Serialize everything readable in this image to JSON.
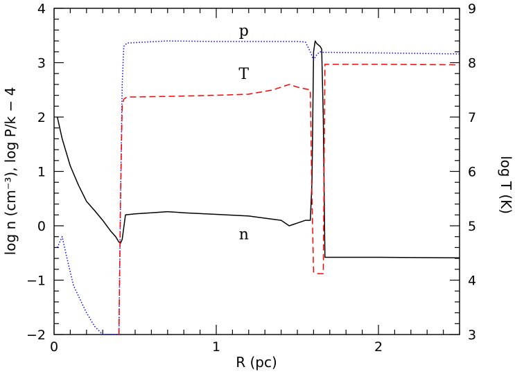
{
  "chart_data": {
    "type": "line",
    "title": "",
    "xlabel": "R (pc)",
    "ylabel_left": "log n (cm⁻³), log P/k − 4",
    "ylabel_right": "log T (K)",
    "xlim": [
      0,
      2.5
    ],
    "ylim_left": [
      -2,
      4
    ],
    "ylim_right": [
      3,
      9
    ],
    "grid": false,
    "x_ticks": [
      0,
      1,
      2
    ],
    "y_ticks_left": [
      -2,
      -1,
      0,
      1,
      2,
      3,
      4
    ],
    "y_ticks_right": [
      3,
      4,
      5,
      6,
      7,
      8,
      9
    ],
    "series": [
      {
        "name": "n",
        "axis": "left",
        "style": "solid",
        "color": "#000000",
        "x": [
          0.02,
          0.05,
          0.1,
          0.15,
          0.2,
          0.25,
          0.3,
          0.35,
          0.38,
          0.4,
          0.41,
          0.42,
          0.44,
          0.5,
          0.6,
          0.7,
          0.8,
          1.0,
          1.2,
          1.4,
          1.45,
          1.5,
          1.55,
          1.58,
          1.59,
          1.6,
          1.61,
          1.62,
          1.64,
          1.65,
          1.66,
          1.67,
          1.7,
          2.0,
          2.5
        ],
        "y": [
          2.0,
          1.6,
          1.1,
          0.75,
          0.45,
          0.28,
          0.1,
          -0.1,
          -0.2,
          -0.3,
          -0.32,
          -0.25,
          0.2,
          0.22,
          0.24,
          0.26,
          0.24,
          0.21,
          0.18,
          0.1,
          0.0,
          0.05,
          0.1,
          0.1,
          0.8,
          3.2,
          3.4,
          3.35,
          3.3,
          3.25,
          2.0,
          -0.58,
          -0.58,
          -0.58,
          -0.59
        ]
      },
      {
        "name": "p",
        "axis": "left",
        "style": "dotted",
        "color": "#0000ff",
        "x": [
          0.02,
          0.05,
          0.08,
          0.12,
          0.16,
          0.2,
          0.25,
          0.3,
          0.32,
          0.4,
          0.41,
          0.42,
          0.43,
          0.45,
          0.5,
          0.7,
          1.0,
          1.3,
          1.5,
          1.55,
          1.58,
          1.6,
          1.62,
          1.64,
          1.66,
          1.7,
          2.0,
          2.5
        ],
        "y": [
          -0.4,
          -0.2,
          -0.6,
          -1.1,
          -1.35,
          -1.6,
          -1.85,
          -2.0,
          -2.02,
          -2.0,
          0.5,
          2.6,
          3.3,
          3.36,
          3.37,
          3.4,
          3.39,
          3.39,
          3.39,
          3.38,
          3.2,
          3.05,
          3.15,
          3.2,
          3.19,
          3.19,
          3.18,
          3.16
        ]
      },
      {
        "name": "T",
        "axis": "right",
        "style": "dashed",
        "color": "#ff0000",
        "x": [
          0.4,
          0.41,
          0.42,
          0.43,
          0.45,
          0.5,
          0.7,
          1.0,
          1.2,
          1.35,
          1.45,
          1.5,
          1.58,
          1.59,
          1.6,
          1.62,
          1.64,
          1.66,
          1.67,
          1.7,
          2.0,
          2.5
        ],
        "y": [
          3.0,
          5.5,
          7.2,
          7.33,
          7.37,
          7.37,
          7.38,
          7.4,
          7.42,
          7.5,
          7.6,
          7.55,
          7.5,
          5.5,
          4.15,
          4.12,
          4.12,
          4.12,
          7.97,
          7.97,
          7.97,
          7.96
        ]
      }
    ],
    "annotations": [
      {
        "text": "p",
        "x": 1.17,
        "y_left": 3.5
      },
      {
        "text": "T",
        "x": 1.17,
        "y_right": 7.7
      },
      {
        "text": "n",
        "x": 1.17,
        "y_left": -0.25
      }
    ]
  }
}
